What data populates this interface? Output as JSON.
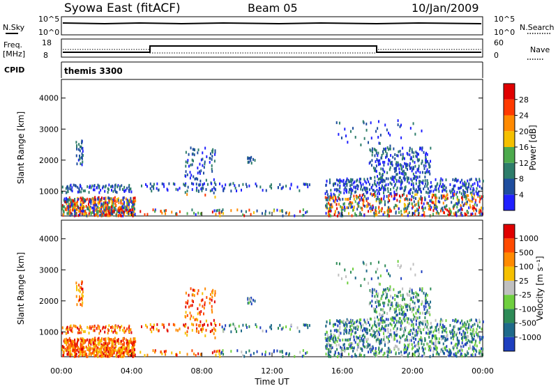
{
  "header": {
    "station": "Syowa East (fitACF)",
    "beam": "Beam 05",
    "date": "10/Jan/2009"
  },
  "top_panels": {
    "nsky_label": "N.Sky",
    "nsky_ticks": [
      "10^5",
      "10^0"
    ],
    "nsearch_label": "N.Search",
    "nsearch_ticks": [
      "10^5",
      "10^0"
    ],
    "freq_label_line1": "Freq.",
    "freq_label_line2": "[MHz]",
    "freq_ticks": [
      "18",
      "8"
    ],
    "nave_label": "Nave",
    "nave_ticks": [
      "60",
      "0"
    ],
    "cpid_label": "CPID",
    "cpid_value": "themis 3300"
  },
  "chart_data": [
    {
      "type": "heatmap",
      "name": "power",
      "ylabel": "Slant Range [km]",
      "yticks": [
        "1000",
        "2000",
        "3000",
        "4000"
      ],
      "ylim": [
        200,
        4600
      ],
      "colorbar_label": "Power [dB]",
      "colorbar_ticks": [
        "4",
        "8",
        "12",
        "16",
        "20",
        "24",
        "28"
      ],
      "colorbar_colors": [
        "#2020ff",
        "#1f4e9e",
        "#2e7d6a",
        "#4daa4d",
        "#f5c000",
        "#ff8a00",
        "#ff3a00",
        "#e00000"
      ]
    },
    {
      "type": "heatmap",
      "name": "velocity",
      "ylabel": "Slant Range [km]",
      "yticks": [
        "1000",
        "2000",
        "3000",
        "4000"
      ],
      "ylim": [
        200,
        4600
      ],
      "colorbar_label": "Velocity [m s⁻¹]",
      "colorbar_ticks": [
        "1000",
        "500",
        "100",
        "25",
        "-25",
        "-100",
        "-500",
        "-1000"
      ],
      "colorbar_colors": [
        "#1e3fbf",
        "#1f6a8a",
        "#2e8b57",
        "#6fcf3f",
        "#c0c0c0",
        "#f5c000",
        "#ff8a00",
        "#ff4a00",
        "#e00000"
      ]
    }
  ],
  "x_axis": {
    "ticks": [
      "00:00",
      "04:00",
      "08:00",
      "12:00",
      "16:00",
      "20:00",
      "00:00"
    ],
    "label": "Time UT"
  }
}
